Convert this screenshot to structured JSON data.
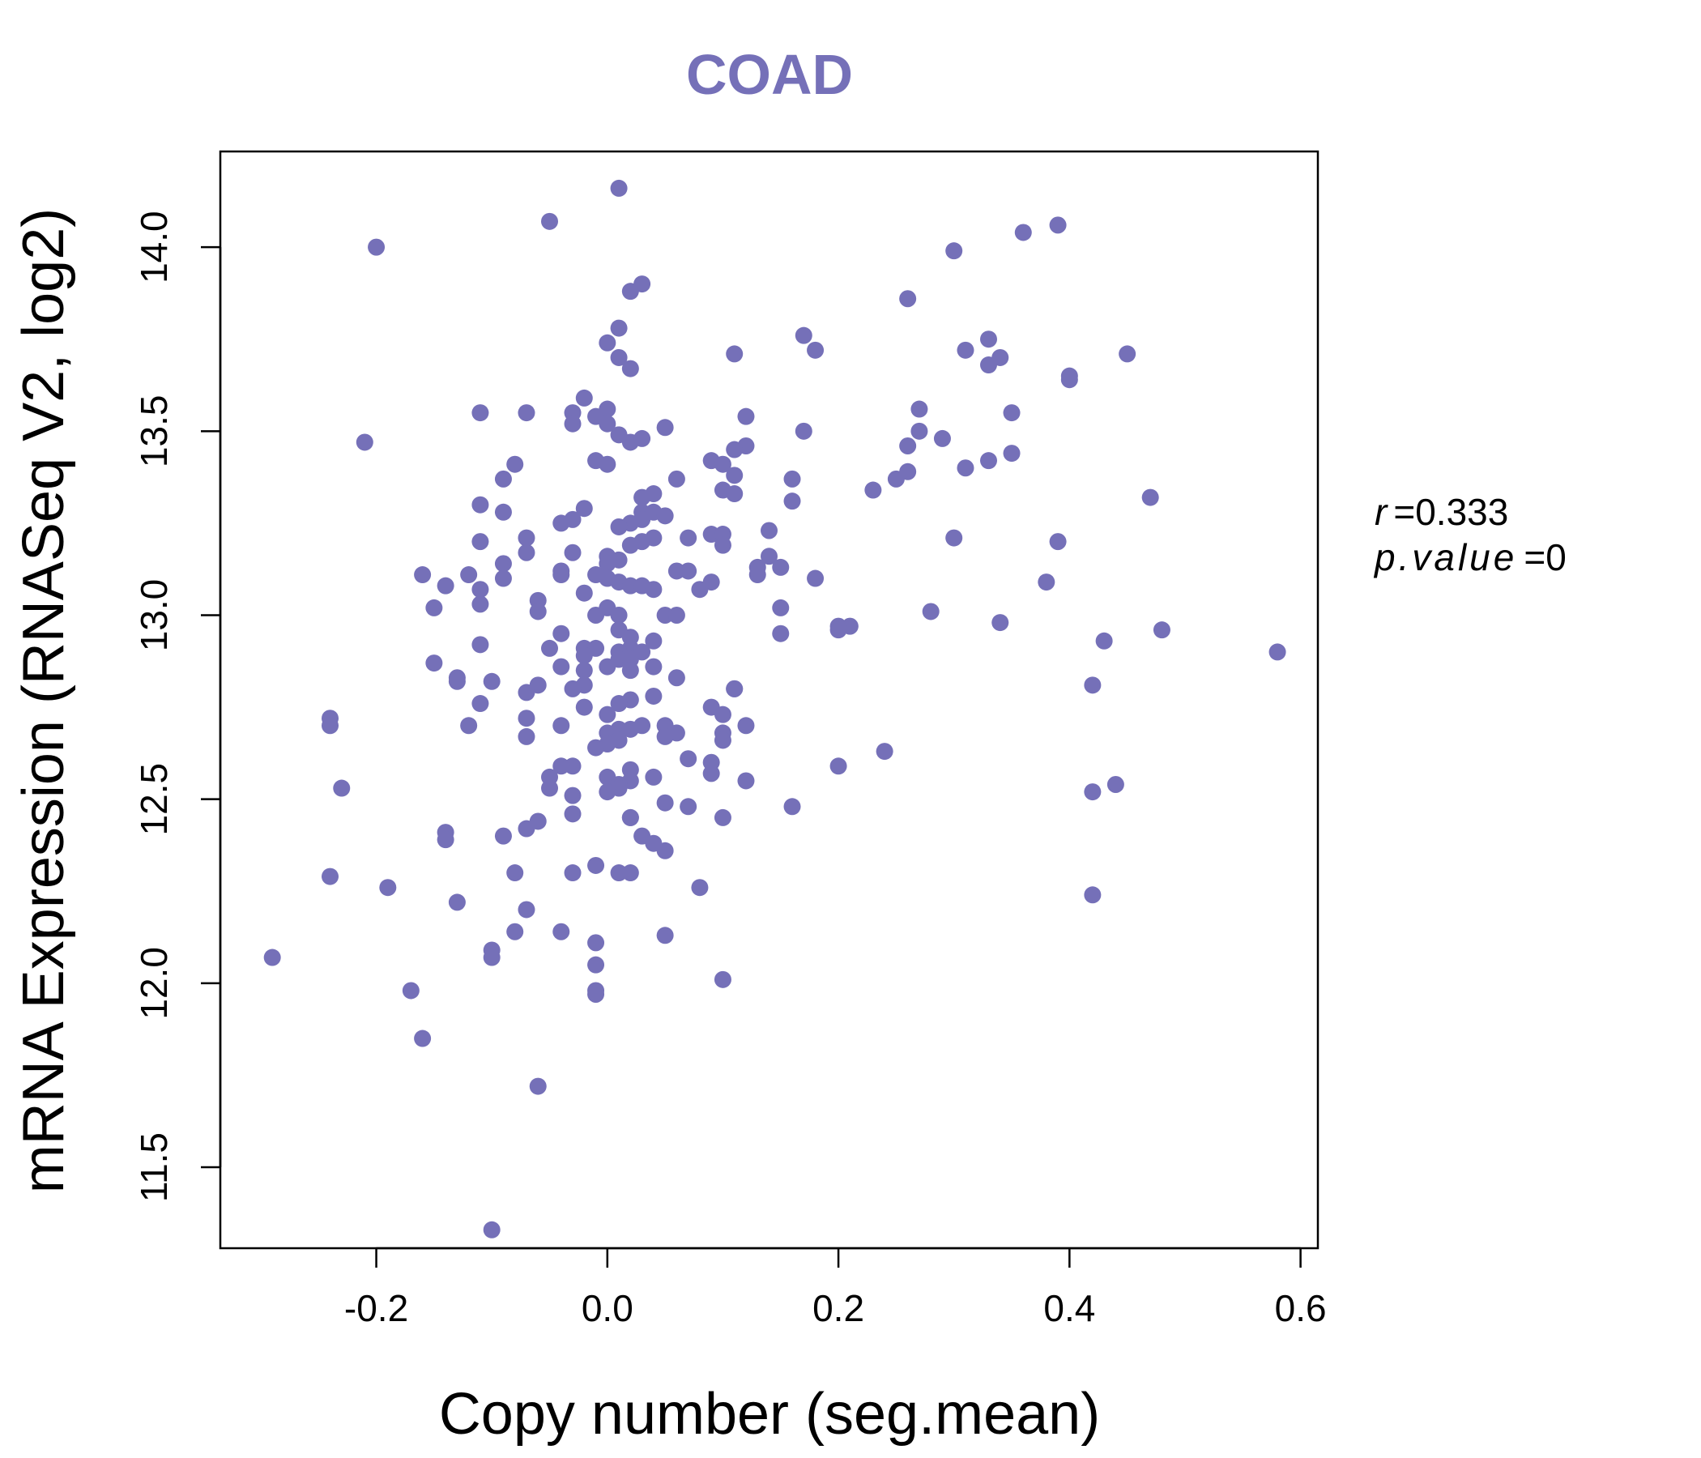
{
  "chart_data": {
    "type": "scatter",
    "title": "COAD",
    "xlabel": "Copy number (seg.mean)",
    "ylabel": "mRNA Expression (RNASeq V2, log2)",
    "xlim": [
      -0.335,
      0.615
    ],
    "ylim": [
      11.28,
      14.26
    ],
    "xticks": [
      -0.2,
      0.0,
      0.2,
      0.4,
      0.6
    ],
    "xtick_labels": [
      "-0.2",
      "0.0",
      "0.2",
      "0.4",
      "0.6"
    ],
    "yticks": [
      11.5,
      12.0,
      12.5,
      13.0,
      13.5,
      14.0
    ],
    "ytick_labels": [
      "11.5",
      "12.0",
      "12.5",
      "13.0",
      "13.5",
      "14.0"
    ],
    "point_color": "#7570b8",
    "title_color": "#7570b8",
    "annotations": {
      "r_label": "r",
      "r_value": "0.333",
      "p_label": "p.value",
      "p_value": "0"
    },
    "points": [
      [
        0.01,
        14.16
      ],
      [
        -0.05,
        14.07
      ],
      [
        -0.2,
        14.0
      ],
      [
        0.36,
        14.04
      ],
      [
        0.39,
        14.06
      ],
      [
        0.3,
        13.99
      ],
      [
        0.03,
        13.9
      ],
      [
        0.02,
        13.88
      ],
      [
        0.26,
        13.86
      ],
      [
        0.01,
        13.78
      ],
      [
        0.0,
        13.74
      ],
      [
        0.17,
        13.76
      ],
      [
        0.18,
        13.72
      ],
      [
        0.33,
        13.75
      ],
      [
        0.31,
        13.72
      ],
      [
        0.34,
        13.7
      ],
      [
        0.33,
        13.68
      ],
      [
        0.11,
        13.71
      ],
      [
        0.45,
        13.71
      ],
      [
        0.01,
        13.7
      ],
      [
        0.02,
        13.67
      ],
      [
        0.4,
        13.65
      ],
      [
        0.4,
        13.64
      ],
      [
        -0.02,
        13.59
      ],
      [
        0.0,
        13.56
      ],
      [
        -0.11,
        13.55
      ],
      [
        -0.07,
        13.55
      ],
      [
        -0.03,
        13.55
      ],
      [
        -0.01,
        13.54
      ],
      [
        0.27,
        13.56
      ],
      [
        0.35,
        13.55
      ],
      [
        0.12,
        13.54
      ],
      [
        0.0,
        13.52
      ],
      [
        0.05,
        13.51
      ],
      [
        -0.03,
        13.52
      ],
      [
        0.17,
        13.5
      ],
      [
        -0.21,
        13.47
      ],
      [
        0.27,
        13.5
      ],
      [
        0.01,
        13.49
      ],
      [
        0.02,
        13.47
      ],
      [
        0.03,
        13.48
      ],
      [
        0.29,
        13.48
      ],
      [
        0.26,
        13.46
      ],
      [
        0.12,
        13.46
      ],
      [
        0.11,
        13.45
      ],
      [
        0.35,
        13.44
      ],
      [
        -0.01,
        13.42
      ],
      [
        0.09,
        13.42
      ],
      [
        0.1,
        13.41
      ],
      [
        0.33,
        13.42
      ],
      [
        0.31,
        13.4
      ],
      [
        0.26,
        13.39
      ],
      [
        -0.08,
        13.41
      ],
      [
        0.0,
        13.41
      ],
      [
        0.11,
        13.38
      ],
      [
        0.25,
        13.37
      ],
      [
        0.16,
        13.37
      ],
      [
        0.06,
        13.37
      ],
      [
        -0.09,
        13.37
      ],
      [
        0.23,
        13.34
      ],
      [
        0.1,
        13.34
      ],
      [
        0.11,
        13.33
      ],
      [
        0.04,
        13.33
      ],
      [
        0.03,
        13.32
      ],
      [
        0.16,
        13.31
      ],
      [
        0.47,
        13.32
      ],
      [
        -0.11,
        13.3
      ],
      [
        0.03,
        13.28
      ],
      [
        -0.09,
        13.28
      ],
      [
        -0.02,
        13.29
      ],
      [
        0.04,
        13.28
      ],
      [
        0.05,
        13.27
      ],
      [
        0.03,
        13.26
      ],
      [
        0.02,
        13.25
      ],
      [
        -0.03,
        13.26
      ],
      [
        -0.04,
        13.25
      ],
      [
        0.01,
        13.24
      ],
      [
        0.14,
        13.23
      ],
      [
        0.09,
        13.22
      ],
      [
        0.1,
        13.22
      ],
      [
        0.07,
        13.21
      ],
      [
        0.3,
        13.21
      ],
      [
        0.04,
        13.21
      ],
      [
        0.03,
        13.2
      ],
      [
        -0.07,
        13.21
      ],
      [
        -0.11,
        13.2
      ],
      [
        0.39,
        13.2
      ],
      [
        0.02,
        13.19
      ],
      [
        0.1,
        13.19
      ],
      [
        -0.03,
        13.17
      ],
      [
        0.0,
        13.16
      ],
      [
        0.01,
        13.15
      ],
      [
        -0.07,
        13.17
      ],
      [
        0.14,
        13.16
      ],
      [
        0.0,
        13.14
      ],
      [
        -0.09,
        13.14
      ],
      [
        0.15,
        13.13
      ],
      [
        0.13,
        13.13
      ],
      [
        -0.04,
        13.12
      ],
      [
        0.13,
        13.11
      ],
      [
        0.06,
        13.12
      ],
      [
        0.07,
        13.12
      ],
      [
        -0.12,
        13.11
      ],
      [
        -0.16,
        13.11
      ],
      [
        -0.04,
        13.11
      ],
      [
        0.18,
        13.1
      ],
      [
        -0.01,
        13.11
      ],
      [
        -0.09,
        13.1
      ],
      [
        0.09,
        13.09
      ],
      [
        0.0,
        13.1
      ],
      [
        0.01,
        13.09
      ],
      [
        0.38,
        13.09
      ],
      [
        -0.14,
        13.08
      ],
      [
        0.02,
        13.08
      ],
      [
        0.03,
        13.08
      ],
      [
        0.04,
        13.07
      ],
      [
        -0.11,
        13.07
      ],
      [
        -0.02,
        13.06
      ],
      [
        0.08,
        13.07
      ],
      [
        -0.06,
        13.04
      ],
      [
        -0.11,
        13.03
      ],
      [
        0.0,
        13.02
      ],
      [
        0.15,
        13.02
      ],
      [
        -0.15,
        13.02
      ],
      [
        0.28,
        13.01
      ],
      [
        -0.06,
        13.01
      ],
      [
        0.01,
        13.0
      ],
      [
        0.05,
        13.0
      ],
      [
        -0.01,
        13.0
      ],
      [
        0.06,
        13.0
      ],
      [
        0.34,
        12.98
      ],
      [
        0.21,
        12.97
      ],
      [
        0.2,
        12.97
      ],
      [
        0.2,
        12.96
      ],
      [
        0.48,
        12.96
      ],
      [
        0.01,
        12.96
      ],
      [
        0.15,
        12.95
      ],
      [
        -0.04,
        12.95
      ],
      [
        0.02,
        12.94
      ],
      [
        0.04,
        12.93
      ],
      [
        0.43,
        12.93
      ],
      [
        -0.11,
        12.92
      ],
      [
        0.02,
        12.91
      ],
      [
        -0.02,
        12.91
      ],
      [
        -0.01,
        12.91
      ],
      [
        -0.05,
        12.91
      ],
      [
        0.03,
        12.9
      ],
      [
        0.58,
        12.9
      ],
      [
        0.01,
        12.9
      ],
      [
        -0.02,
        12.89
      ],
      [
        0.01,
        12.88
      ],
      [
        0.02,
        12.88
      ],
      [
        -0.15,
        12.87
      ],
      [
        0.0,
        12.86
      ],
      [
        0.04,
        12.86
      ],
      [
        -0.04,
        12.86
      ],
      [
        0.02,
        12.85
      ],
      [
        -0.02,
        12.85
      ],
      [
        0.06,
        12.83
      ],
      [
        -0.13,
        12.83
      ],
      [
        -0.13,
        12.82
      ],
      [
        -0.1,
        12.82
      ],
      [
        -0.06,
        12.81
      ],
      [
        0.42,
        12.81
      ],
      [
        -0.02,
        12.81
      ],
      [
        0.11,
        12.8
      ],
      [
        0.11,
        12.8
      ],
      [
        -0.03,
        12.8
      ],
      [
        -0.07,
        12.79
      ],
      [
        0.04,
        12.78
      ],
      [
        0.02,
        12.77
      ],
      [
        0.01,
        12.76
      ],
      [
        -0.11,
        12.76
      ],
      [
        -0.02,
        12.75
      ],
      [
        0.09,
        12.75
      ],
      [
        0.1,
        12.73
      ],
      [
        0.0,
        12.73
      ],
      [
        -0.24,
        12.72
      ],
      [
        -0.07,
        12.72
      ],
      [
        -0.24,
        12.7
      ],
      [
        -0.12,
        12.7
      ],
      [
        0.12,
        12.7
      ],
      [
        0.05,
        12.7
      ],
      [
        0.03,
        12.7
      ],
      [
        -0.04,
        12.7
      ],
      [
        0.01,
        12.69
      ],
      [
        0.02,
        12.69
      ],
      [
        0.1,
        12.68
      ],
      [
        0.0,
        12.68
      ],
      [
        0.06,
        12.68
      ],
      [
        -0.07,
        12.67
      ],
      [
        0.05,
        12.67
      ],
      [
        0.1,
        12.66
      ],
      [
        0.01,
        12.66
      ],
      [
        0.0,
        12.65
      ],
      [
        -0.01,
        12.64
      ],
      [
        0.24,
        12.63
      ],
      [
        0.07,
        12.61
      ],
      [
        0.09,
        12.6
      ],
      [
        0.2,
        12.59
      ],
      [
        -0.03,
        12.59
      ],
      [
        -0.04,
        12.59
      ],
      [
        0.02,
        12.58
      ],
      [
        0.09,
        12.57
      ],
      [
        0.04,
        12.56
      ],
      [
        -0.05,
        12.56
      ],
      [
        0.0,
        12.56
      ],
      [
        0.02,
        12.55
      ],
      [
        0.12,
        12.55
      ],
      [
        0.01,
        12.54
      ],
      [
        0.44,
        12.54
      ],
      [
        -0.05,
        12.53
      ],
      [
        -0.23,
        12.53
      ],
      [
        0.01,
        12.53
      ],
      [
        0.42,
        12.52
      ],
      [
        0.0,
        12.52
      ],
      [
        -0.03,
        12.51
      ],
      [
        0.05,
        12.49
      ],
      [
        0.16,
        12.48
      ],
      [
        0.07,
        12.48
      ],
      [
        -0.03,
        12.46
      ],
      [
        0.1,
        12.45
      ],
      [
        0.02,
        12.45
      ],
      [
        0.02,
        12.45
      ],
      [
        -0.06,
        12.44
      ],
      [
        -0.07,
        12.42
      ],
      [
        -0.14,
        12.41
      ],
      [
        -0.14,
        12.39
      ],
      [
        -0.09,
        12.4
      ],
      [
        0.03,
        12.4
      ],
      [
        0.04,
        12.38
      ],
      [
        0.05,
        12.36
      ],
      [
        -0.01,
        12.32
      ],
      [
        0.01,
        12.3
      ],
      [
        0.02,
        12.3
      ],
      [
        -0.03,
        12.3
      ],
      [
        -0.08,
        12.3
      ],
      [
        -0.24,
        12.29
      ],
      [
        -0.19,
        12.26
      ],
      [
        0.08,
        12.26
      ],
      [
        0.42,
        12.24
      ],
      [
        -0.13,
        12.22
      ],
      [
        -0.07,
        12.2
      ],
      [
        -0.08,
        12.14
      ],
      [
        -0.04,
        12.14
      ],
      [
        0.05,
        12.13
      ],
      [
        -0.01,
        12.11
      ],
      [
        -0.1,
        12.09
      ],
      [
        -0.1,
        12.07
      ],
      [
        -0.29,
        12.07
      ],
      [
        -0.01,
        12.05
      ],
      [
        0.1,
        12.01
      ],
      [
        -0.01,
        11.98
      ],
      [
        -0.17,
        11.98
      ],
      [
        -0.01,
        11.97
      ],
      [
        -0.16,
        11.85
      ],
      [
        -0.06,
        11.72
      ],
      [
        -0.1,
        11.33
      ]
    ]
  }
}
